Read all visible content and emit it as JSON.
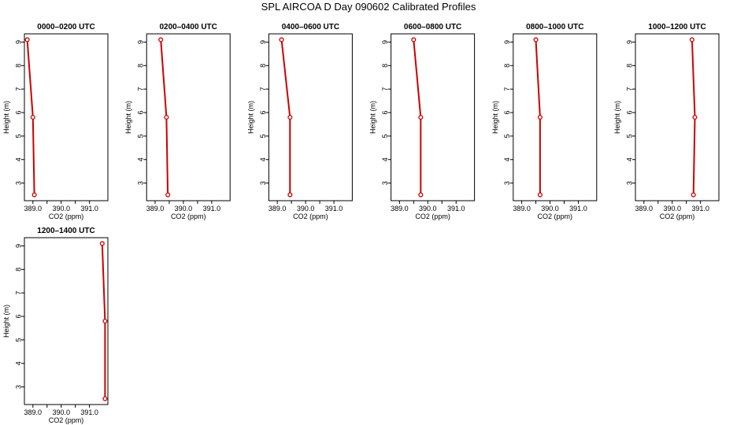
{
  "title": "SPL AIRCOA D  Day 090602  Calibrated Profiles",
  "chart_data": {
    "type": "line",
    "xlabel": "CO2 (ppm)",
    "ylabel": "Height (m)",
    "xlim": [
      388.7,
      391.65
    ],
    "ylim": [
      2.25,
      9.35
    ],
    "xticks": [
      389.0,
      389.5,
      390.0,
      390.5,
      391.0
    ],
    "xtick_labels": [
      "389.0",
      "",
      "390.0",
      "",
      "391.0"
    ],
    "yticks": [
      3,
      4,
      5,
      6,
      7,
      8,
      9
    ],
    "line_color": "#cc0000",
    "panels": [
      {
        "title": "0000–0200 UTC",
        "points": [
          [
            388.8,
            9.1
          ],
          [
            389.0,
            5.8
          ],
          [
            389.05,
            2.5
          ]
        ]
      },
      {
        "title": "0200–0400 UTC",
        "points": [
          [
            389.2,
            9.1
          ],
          [
            389.4,
            5.8
          ],
          [
            389.45,
            2.5
          ]
        ]
      },
      {
        "title": "0400–0600 UTC",
        "points": [
          [
            389.15,
            9.1
          ],
          [
            389.45,
            5.8
          ],
          [
            389.45,
            2.5
          ]
        ]
      },
      {
        "title": "0600–0800 UTC",
        "points": [
          [
            389.5,
            9.1
          ],
          [
            389.75,
            5.8
          ],
          [
            389.75,
            2.5
          ]
        ]
      },
      {
        "title": "0800–1000 UTC",
        "points": [
          [
            389.5,
            9.1
          ],
          [
            389.65,
            5.8
          ],
          [
            389.65,
            2.5
          ]
        ]
      },
      {
        "title": "1000–1200 UTC",
        "points": [
          [
            390.7,
            9.1
          ],
          [
            390.8,
            5.8
          ],
          [
            390.75,
            2.5
          ]
        ]
      },
      {
        "title": "1200–1400 UTC",
        "points": [
          [
            391.45,
            9.1
          ],
          [
            391.55,
            5.8
          ],
          [
            391.55,
            2.5
          ]
        ]
      }
    ]
  }
}
